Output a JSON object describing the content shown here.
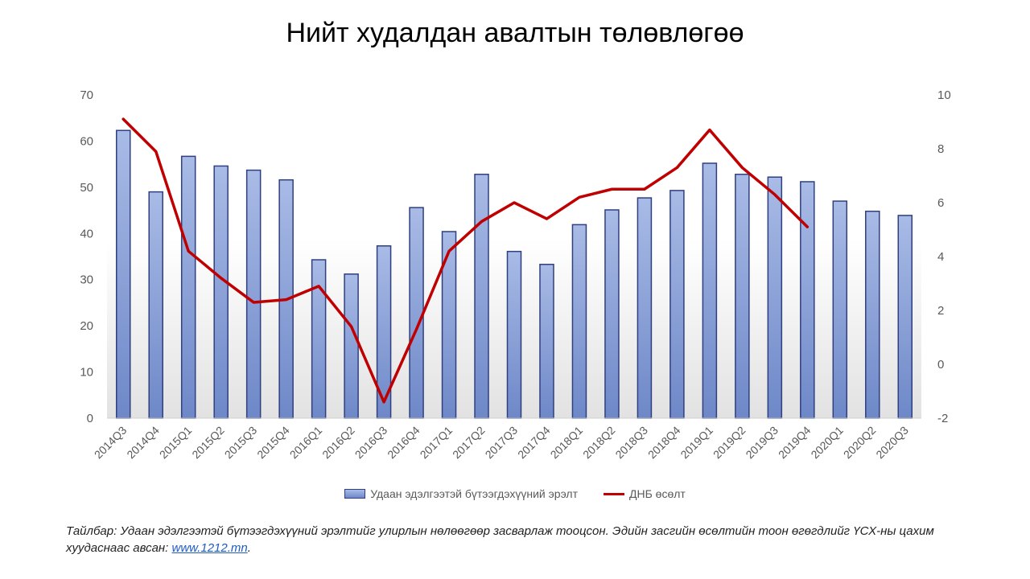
{
  "title": "Нийт худалдан авалтын төлөвлөгөө",
  "legend": {
    "bar_label": "Удаан эдэлгээтэй бүтээгдэхүүний эрэлт",
    "line_label": "ДНБ өсөлт"
  },
  "note": {
    "prefix": "Тайлбар",
    "text": ": Удаан эдэлгээтэй бүтээгдэхүүний эрэлтийг улирлын нөлөөгөөр засварлаж тооцсон. Эдийн засгийн өсөлтийн тоон өгөгдлийг ҮСХ-ны цахим хуудаснаас авсан: ",
    "link": "www.1212.mn",
    "suffix": "."
  },
  "colors": {
    "bar_fill_top": "#A9BBE6",
    "bar_fill_bottom": "#6E88C8",
    "bar_stroke": "#2F3F7F",
    "line": "#C00000",
    "axis_text": "#595959"
  },
  "chart_data": {
    "type": "bar+line",
    "title": "Нийт худалдан авалтын төлөвлөгөө",
    "categories": [
      "2014Q3",
      "2014Q4",
      "2015Q1",
      "2015Q2",
      "2015Q3",
      "2015Q4",
      "2016Q1",
      "2016Q2",
      "2016Q3",
      "2016Q4",
      "2017Q1",
      "2017Q2",
      "2017Q3",
      "2017Q4",
      "2018Q1",
      "2018Q2",
      "2018Q3",
      "2018Q4",
      "2019Q1",
      "2019Q2",
      "2019Q3",
      "2019Q4",
      "2020Q1",
      "2020Q2",
      "2020Q3"
    ],
    "series": [
      {
        "name": "Удаан эдэлгээтэй бүтээгдэхүүний эрэлт",
        "type": "bar",
        "axis": "left",
        "values": [
          62.3,
          49.0,
          56.7,
          54.6,
          53.7,
          51.6,
          34.3,
          31.2,
          37.3,
          45.6,
          40.4,
          52.8,
          36.1,
          33.3,
          41.9,
          45.1,
          47.7,
          49.3,
          55.2,
          52.8,
          52.2,
          51.2,
          47.0,
          44.8,
          43.9
        ]
      },
      {
        "name": "ДНБ өсөлт",
        "type": "line",
        "axis": "right",
        "values": [
          9.1,
          7.9,
          4.2,
          3.2,
          2.3,
          2.4,
          2.9,
          1.4,
          -1.4,
          1.3,
          4.2,
          5.3,
          6.0,
          5.4,
          6.2,
          6.5,
          6.5,
          7.3,
          8.7,
          7.3,
          6.3,
          5.1,
          null,
          null,
          null
        ]
      }
    ],
    "y_left": {
      "min": 0,
      "max": 70,
      "ticks": [
        0,
        10,
        20,
        30,
        40,
        50,
        60,
        70
      ]
    },
    "y_right": {
      "min": -2,
      "max": 10,
      "ticks": [
        -2,
        0,
        2,
        4,
        6,
        8,
        10
      ]
    },
    "grid": false,
    "legend_position": "bottom"
  }
}
